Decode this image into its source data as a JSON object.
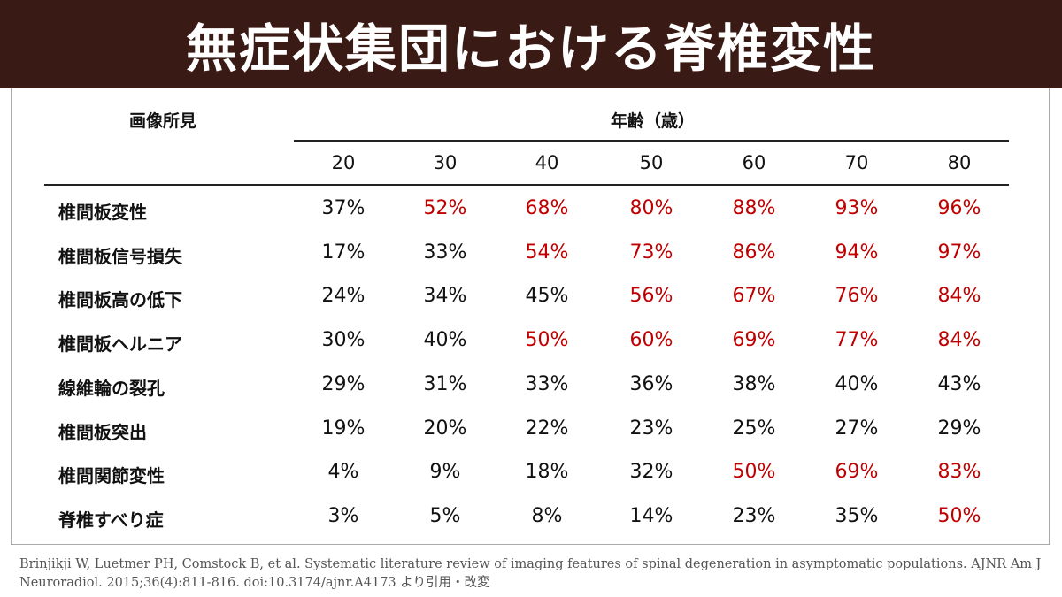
{
  "title": "無症状集団における脊椎変性",
  "table": {
    "row_header": "画像所見",
    "age_header": "年齢（歳）",
    "ages": [
      "20",
      "30",
      "40",
      "50",
      "60",
      "70",
      "80"
    ],
    "rows": [
      {
        "label": "椎間板変性",
        "values": [
          "37%",
          "52%",
          "68%",
          "80%",
          "88%",
          "93%",
          "96%"
        ],
        "high": [
          false,
          true,
          true,
          true,
          true,
          true,
          true
        ]
      },
      {
        "label": "椎間板信号損失",
        "values": [
          "17%",
          "33%",
          "54%",
          "73%",
          "86%",
          "94%",
          "97%"
        ],
        "high": [
          false,
          false,
          true,
          true,
          true,
          true,
          true
        ]
      },
      {
        "label": "椎間板高の低下",
        "values": [
          "24%",
          "34%",
          "45%",
          "56%",
          "67%",
          "76%",
          "84%"
        ],
        "high": [
          false,
          false,
          false,
          true,
          true,
          true,
          true
        ]
      },
      {
        "label": "椎間板ヘルニア",
        "values": [
          "30%",
          "40%",
          "50%",
          "60%",
          "69%",
          "77%",
          "84%"
        ],
        "high": [
          false,
          false,
          true,
          true,
          true,
          true,
          true
        ]
      },
      {
        "label": "線維輪の裂孔",
        "values": [
          "29%",
          "31%",
          "33%",
          "36%",
          "38%",
          "40%",
          "43%"
        ],
        "high": [
          false,
          false,
          false,
          false,
          false,
          false,
          false
        ]
      },
      {
        "label": "椎間板突出",
        "values": [
          "19%",
          "20%",
          "22%",
          "23%",
          "25%",
          "27%",
          "29%"
        ],
        "high": [
          false,
          false,
          false,
          false,
          false,
          false,
          false
        ]
      },
      {
        "label": "椎間関節変性",
        "values": [
          "4%",
          "9%",
          "18%",
          "32%",
          "50%",
          "69%",
          "83%"
        ],
        "high": [
          false,
          false,
          false,
          false,
          true,
          true,
          true
        ]
      },
      {
        "label": "脊椎すべり症",
        "values": [
          "3%",
          "5%",
          "8%",
          "14%",
          "23%",
          "35%",
          "50%"
        ],
        "high": [
          false,
          false,
          false,
          false,
          false,
          false,
          true
        ]
      }
    ],
    "colors": {
      "normal": "#111111",
      "high": "#c00000"
    }
  },
  "citation": {
    "line1": "Brinjikji W, Luetmer PH, Comstock B, et al. Systematic literature review of imaging features of spinal degeneration in asymptomatic populations. AJNR Am J",
    "line2": "Neuroradiol. 2015;36(4):811-816. doi:10.3174/ajnr.A4173 より引用・改変"
  },
  "colors": {
    "title_bar": "#3a1a14",
    "title_text": "#ffffff"
  }
}
